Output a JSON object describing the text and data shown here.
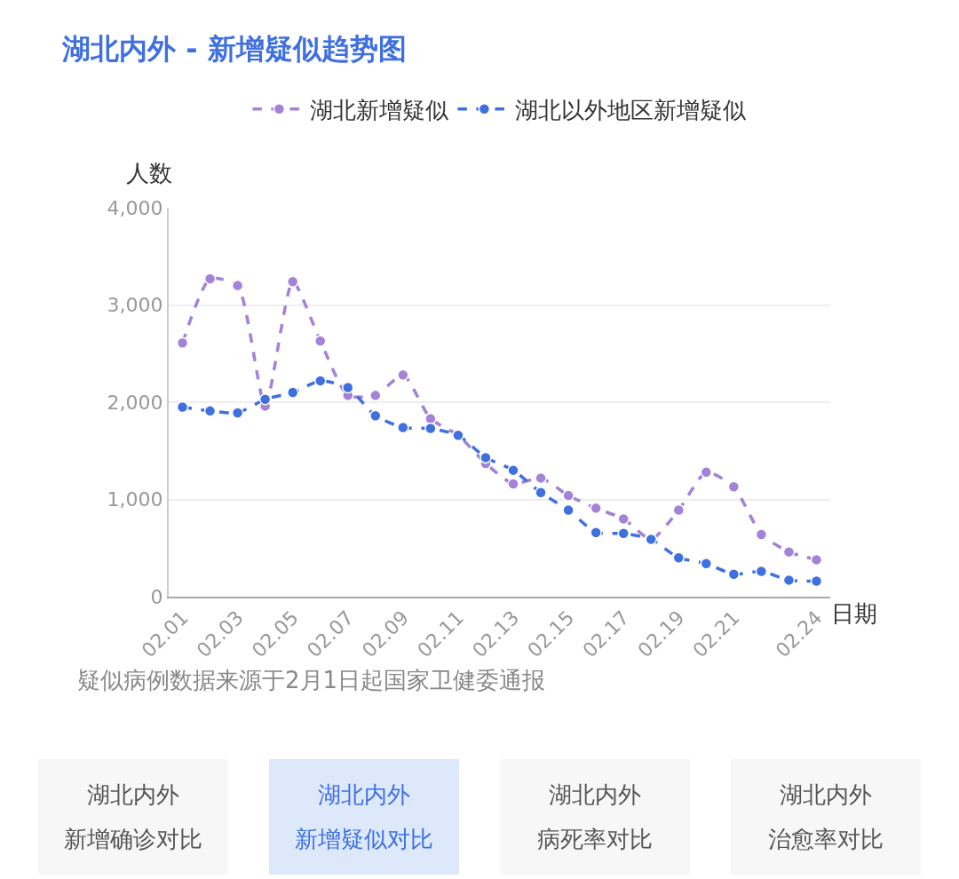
{
  "chart_data": {
    "type": "line",
    "title": "湖北内外 - 新增疑似趋势图",
    "xlabel": "日期",
    "ylabel": "人数",
    "categories": [
      "02.01",
      null,
      "02.03",
      null,
      "02.05",
      null,
      "02.07",
      null,
      "02.09",
      null,
      "02.11",
      null,
      "02.13",
      null,
      "02.15",
      null,
      "02.17",
      null,
      "02.19",
      null,
      "02.21",
      null,
      null,
      "02.24"
    ],
    "series": [
      {
        "name": "湖北新增疑似",
        "color": "#a382d8",
        "values": [
          2610,
          3270,
          3200,
          1960,
          3240,
          2630,
          2070,
          2070,
          2280,
          1830,
          1660,
          1370,
          1160,
          1220,
          1040,
          910,
          800,
          590,
          890,
          1280,
          1130,
          640,
          460,
          380
        ]
      },
      {
        "name": "湖北以外地区新增疑似",
        "color": "#3f70e0",
        "values": [
          1950,
          1910,
          1890,
          2030,
          2100,
          2220,
          2150,
          1860,
          1740,
          1730,
          1660,
          1430,
          1300,
          1070,
          890,
          660,
          650,
          590,
          400,
          340,
          230,
          260,
          170,
          160
        ]
      }
    ],
    "ylim": [
      0,
      4000
    ],
    "yticks": [
      {
        "value": 0,
        "label": "0"
      },
      {
        "value": 1000,
        "label": "1,000"
      },
      {
        "value": 2000,
        "label": "2,000"
      },
      {
        "value": 3000,
        "label": "3,000"
      },
      {
        "value": 4000,
        "label": "4,000"
      }
    ],
    "grid": "y",
    "legend": "top",
    "marker": "circle",
    "line_style": "dashed",
    "annotations": [
      "疑似病例数据来源于2月1日起国家卫健委通报",
      "湖北内外",
      "新增确诊对比",
      "湖北内外",
      "新增疑似对比",
      "湖北内外",
      "病死率对比",
      "湖北内外",
      "治愈率对比"
    ]
  }
}
